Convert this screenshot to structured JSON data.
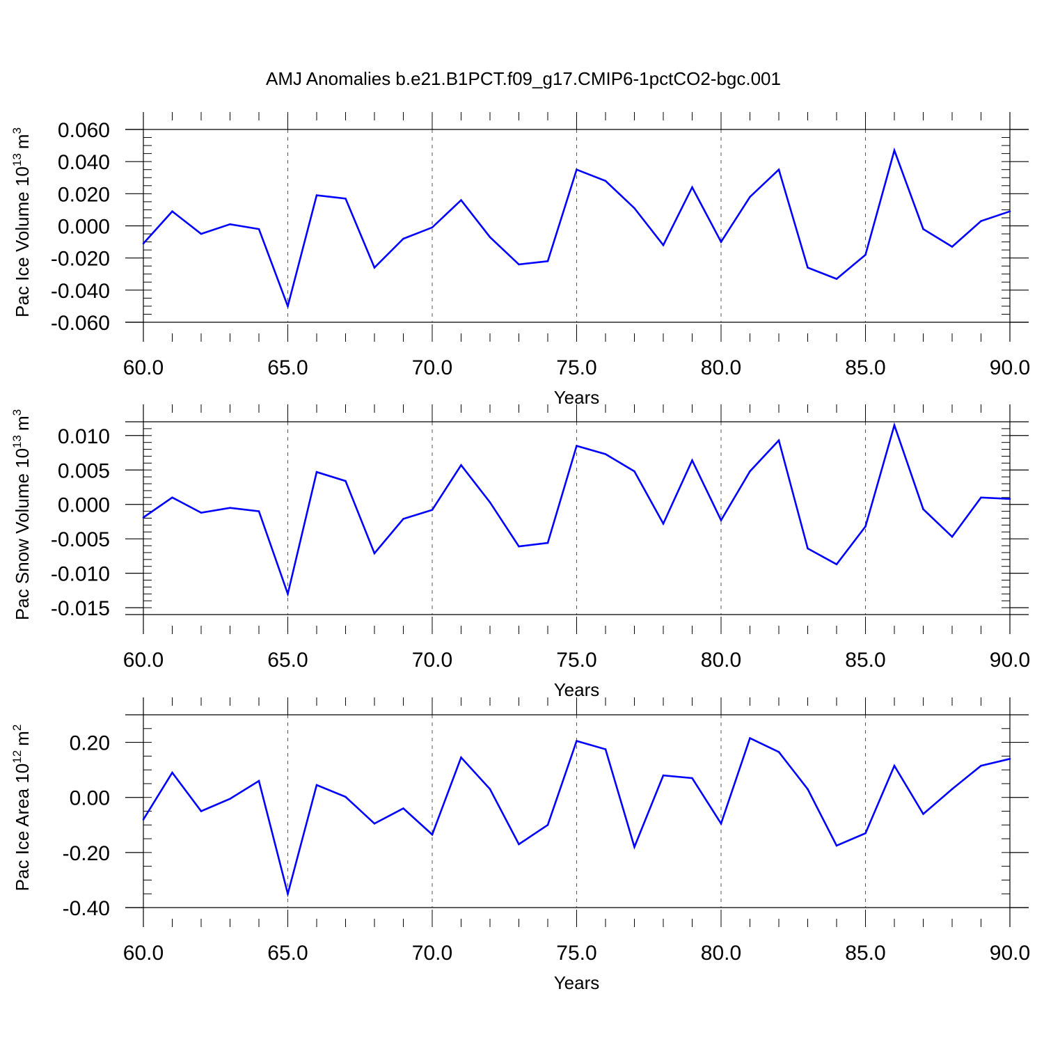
{
  "title": "AMJ Anomalies b.e21.B1PCT.f09_g17.CMIP6-1pctCO2-bgc.001",
  "colors": {
    "series": "#0000ff",
    "axes": "#000000",
    "grid": "#555555"
  },
  "chart_data": [
    {
      "type": "line",
      "ylabel": "Pac Ice Volume 10",
      "ylabel_exp": "13",
      "ylabel_unit": "m",
      "ylabel_unit_exp": "3",
      "xlabel": "Years",
      "xlim": [
        60,
        90
      ],
      "ylim": [
        -0.06,
        0.06
      ],
      "x_ticks": [
        60,
        65,
        70,
        75,
        80,
        85,
        90
      ],
      "x_tick_labels": [
        "60.0",
        "65.0",
        "70.0",
        "75.0",
        "80.0",
        "85.0",
        "90.0"
      ],
      "y_ticks": [
        -0.06,
        -0.04,
        -0.02,
        0.0,
        0.02,
        0.04,
        0.06
      ],
      "y_tick_labels": [
        "-0.060",
        "-0.040",
        "-0.020",
        "0.000",
        "0.020",
        "0.040",
        "0.060"
      ],
      "y_minor_step": 0.005,
      "grid": "dashed vertical lines at major x ticks",
      "x": [
        60,
        61,
        62,
        63,
        64,
        65,
        66,
        67,
        68,
        69,
        70,
        71,
        72,
        73,
        74,
        75,
        76,
        77,
        78,
        79,
        80,
        81,
        82,
        83,
        84,
        85,
        86,
        87,
        88,
        89,
        90
      ],
      "values": [
        -0.011,
        0.009,
        -0.005,
        0.001,
        -0.002,
        -0.05,
        0.019,
        0.017,
        -0.026,
        -0.008,
        -0.001,
        0.016,
        -0.007,
        -0.024,
        -0.022,
        0.035,
        0.028,
        0.011,
        -0.012,
        0.024,
        -0.01,
        0.018,
        0.035,
        -0.026,
        -0.033,
        -0.018,
        0.047,
        -0.002,
        -0.013,
        0.003,
        0.009
      ]
    },
    {
      "type": "line",
      "ylabel": "Pac Snow Volume 10",
      "ylabel_exp": "13",
      "ylabel_unit": "m",
      "ylabel_unit_exp": "3",
      "xlabel": "Years",
      "xlim": [
        60,
        90
      ],
      "ylim": [
        -0.016,
        0.012
      ],
      "x_ticks": [
        60,
        65,
        70,
        75,
        80,
        85,
        90
      ],
      "x_tick_labels": [
        "60.0",
        "65.0",
        "70.0",
        "75.0",
        "80.0",
        "85.0",
        "90.0"
      ],
      "y_ticks": [
        -0.015,
        -0.01,
        -0.005,
        0.0,
        0.005,
        0.01
      ],
      "y_tick_labels": [
        "-0.015",
        "-0.010",
        "-0.005",
        "0.000",
        "0.005",
        "0.010"
      ],
      "y_minor_step": 0.001,
      "grid": "dashed vertical lines at major x ticks",
      "x": [
        60,
        61,
        62,
        63,
        64,
        65,
        66,
        67,
        68,
        69,
        70,
        71,
        72,
        73,
        74,
        75,
        76,
        77,
        78,
        79,
        80,
        81,
        82,
        83,
        84,
        85,
        86,
        87,
        88,
        89,
        90
      ],
      "values": [
        -0.0019,
        0.001,
        -0.0012,
        -0.0005,
        -0.001,
        -0.013,
        0.0047,
        0.0034,
        -0.0071,
        -0.0021,
        -0.0008,
        0.0057,
        0.0003,
        -0.0061,
        -0.0056,
        0.0085,
        0.0073,
        0.0048,
        -0.0028,
        0.0064,
        -0.0023,
        0.0048,
        0.0093,
        -0.0064,
        -0.0087,
        -0.0032,
        0.0115,
        -0.0007,
        -0.0047,
        0.001,
        0.0008
      ]
    },
    {
      "type": "line",
      "ylabel": "Pac Ice Area 10",
      "ylabel_exp": "12",
      "ylabel_unit": "m",
      "ylabel_unit_exp": "2",
      "xlabel": "Years",
      "xlim": [
        60,
        90
      ],
      "ylim": [
        -0.4,
        0.3
      ],
      "x_ticks": [
        60,
        65,
        70,
        75,
        80,
        85,
        90
      ],
      "x_tick_labels": [
        "60.0",
        "65.0",
        "70.0",
        "75.0",
        "80.0",
        "85.0",
        "90.0"
      ],
      "y_ticks": [
        -0.4,
        -0.2,
        0.0,
        0.2
      ],
      "y_tick_labels": [
        "-0.40",
        "-0.20",
        "0.00",
        "0.20"
      ],
      "y_minor_step": 0.05,
      "grid": "dashed vertical lines at major x ticks",
      "x": [
        60,
        61,
        62,
        63,
        64,
        65,
        66,
        67,
        68,
        69,
        70,
        71,
        72,
        73,
        74,
        75,
        76,
        77,
        78,
        79,
        80,
        81,
        82,
        83,
        84,
        85,
        86,
        87,
        88,
        89,
        90
      ],
      "values": [
        -0.08,
        0.09,
        -0.05,
        -0.005,
        0.06,
        -0.35,
        0.045,
        0.002,
        -0.095,
        -0.04,
        -0.135,
        0.145,
        0.03,
        -0.17,
        -0.1,
        0.205,
        0.175,
        -0.18,
        0.08,
        0.07,
        -0.095,
        0.215,
        0.165,
        0.03,
        -0.175,
        -0.13,
        0.115,
        -0.06,
        0.03,
        0.115,
        0.14
      ]
    }
  ]
}
